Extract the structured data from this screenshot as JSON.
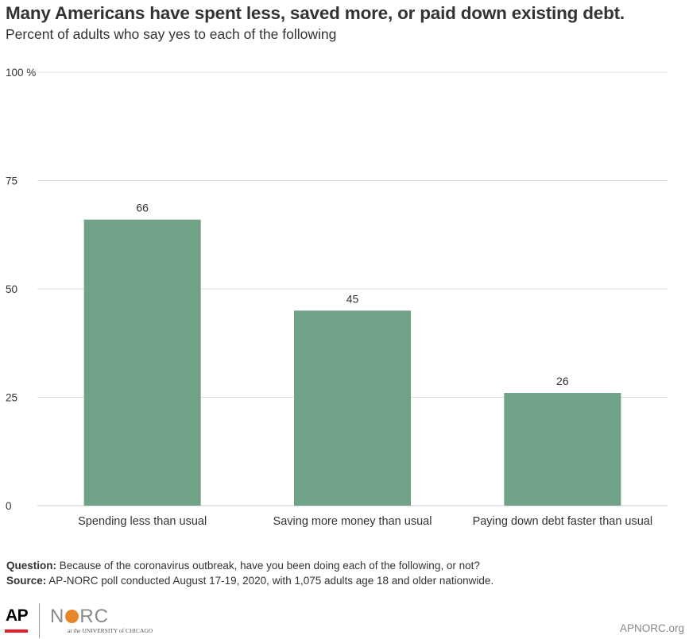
{
  "title": "Many Americans have spent less, saved more, or paid down existing debt.",
  "subtitle": "Percent of adults who say yes to each of the following",
  "chart_data": {
    "type": "bar",
    "categories": [
      "Spending less than usual",
      "Saving more money than usual",
      "Paying down debt faster than usual"
    ],
    "values": [
      66,
      45,
      26
    ],
    "data_labels": [
      "66",
      "45",
      "26"
    ],
    "ylim": [
      0,
      100
    ],
    "yticks": [
      0,
      25,
      50,
      75,
      100
    ],
    "ytick_labels": [
      "0",
      "25",
      "50",
      "75",
      "100 %"
    ],
    "grid": true,
    "bar_color": "#6fa287",
    "grid_color": "#dddddd"
  },
  "notes": {
    "question_label": "Question:",
    "question_text": " Because of the coronavirus outbreak, have you been doing each of the following, or not?",
    "source_label": "Source:",
    "source_text": " AP-NORC poll conducted August 17-19, 2020, with 1,075 adults age 18 and older nationwide."
  },
  "footer": {
    "ap_logo": "AP",
    "norc_logo_left": "N",
    "norc_logo_right": "RC",
    "uchicago": "at the UNIVERSITY of CHICAGO",
    "site": "APNORC.org",
    "brand_red": "#e4202e",
    "brand_orange": "#e8862a"
  }
}
